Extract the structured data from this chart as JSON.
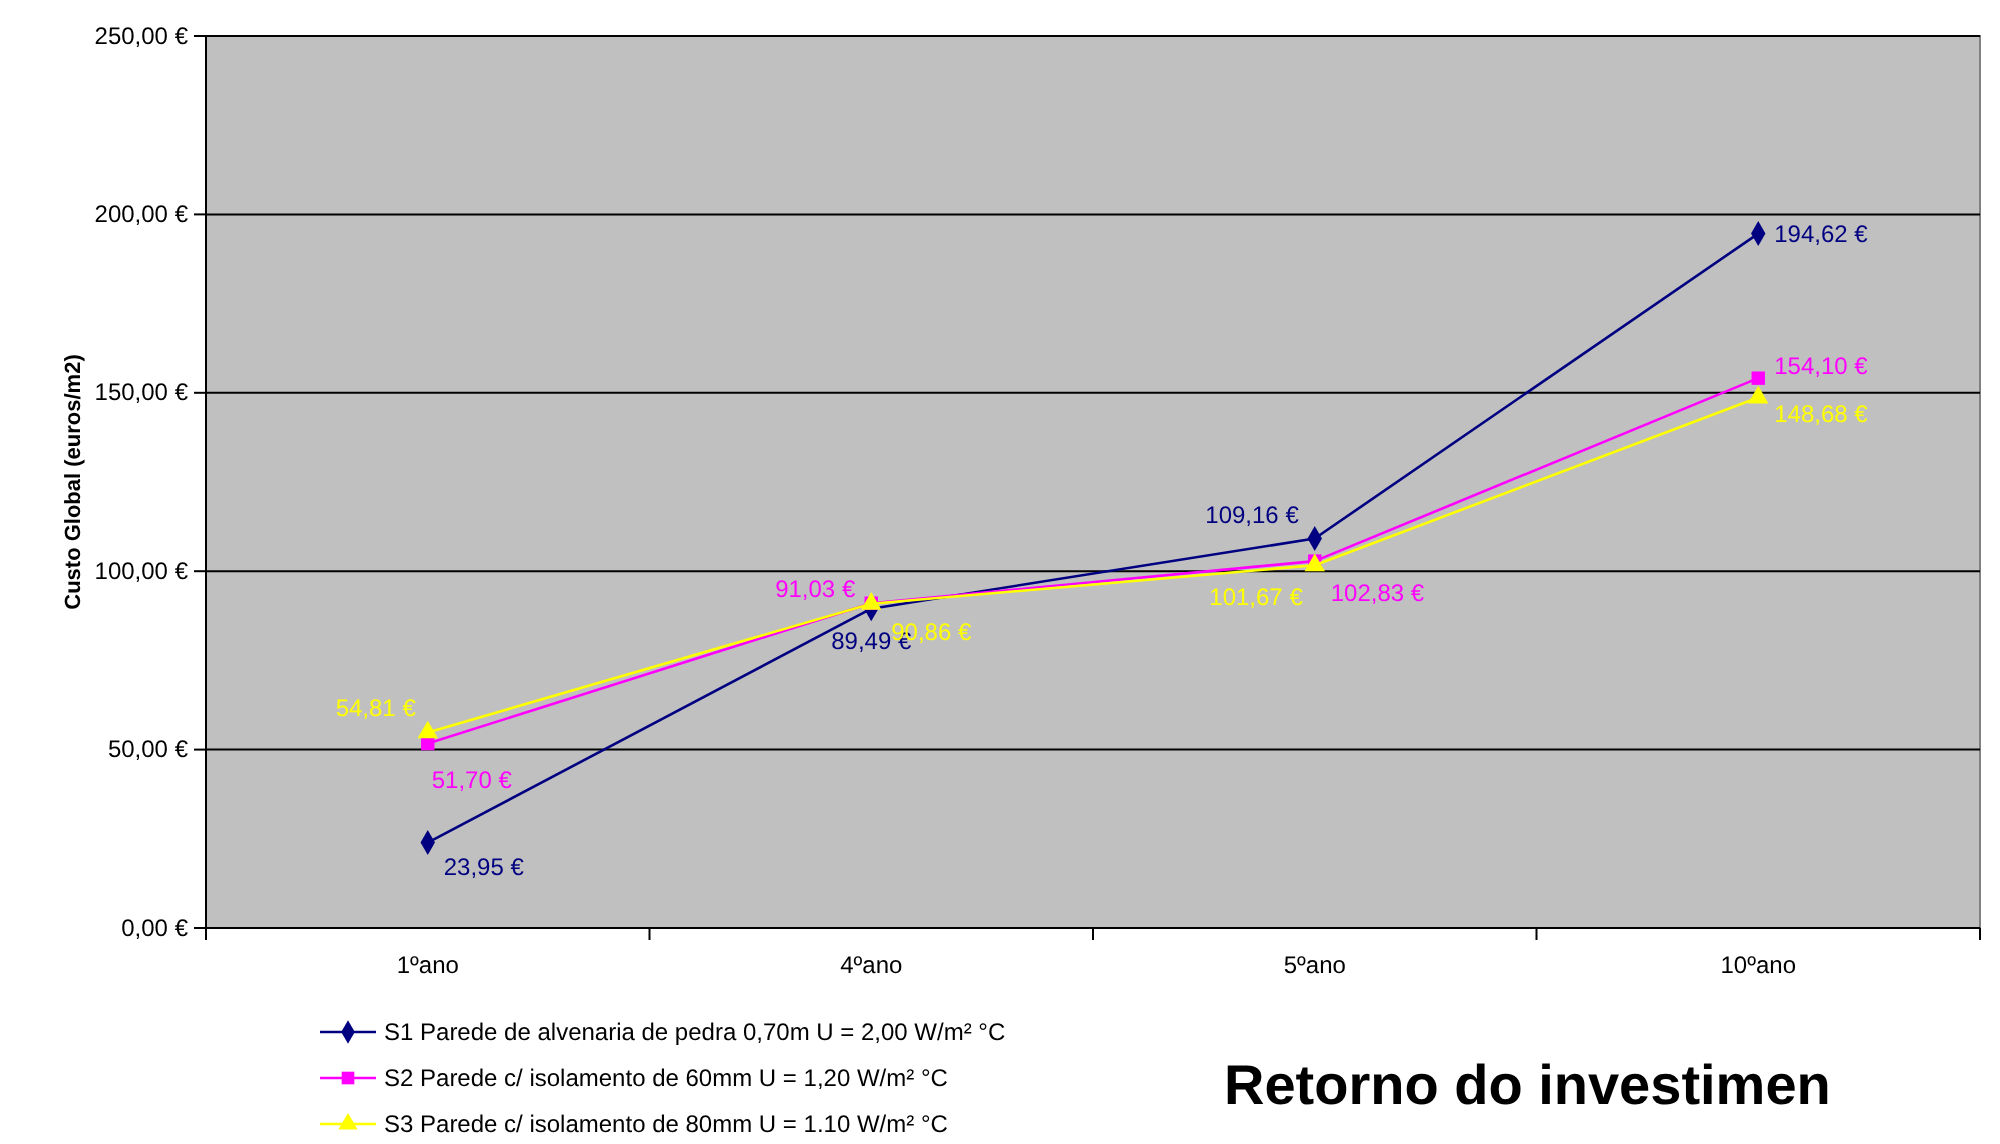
{
  "chart_data": {
    "type": "line",
    "title": "Retorno do investimen",
    "ylabel": "Custo Global (euros/m2)",
    "categories": [
      "1ºano",
      "4ºano",
      "5ºano",
      "10ºano"
    ],
    "ylim": [
      0,
      250
    ],
    "yticks": [
      {
        "value": 0,
        "label": "0,00 €"
      },
      {
        "value": 50,
        "label": "50,00 €"
      },
      {
        "value": 100,
        "label": "100,00 €"
      },
      {
        "value": 150,
        "label": "150,00 €"
      },
      {
        "value": 200,
        "label": "200,00 €"
      },
      {
        "value": 250,
        "label": "250,00 €"
      }
    ],
    "grid": "y",
    "legend": "bottom left",
    "series": [
      {
        "name": "S1 Parede de alvenaria de pedra 0,70m U = 2,00 W/m² °C",
        "color": "#000080",
        "marker": "diamond",
        "values": [
          23.95,
          89.49,
          109.16,
          194.62
        ],
        "value_labels": [
          "23,95 €",
          "89,49 €",
          "109,16 €",
          "194,62 €"
        ]
      },
      {
        "name": "S2 Parede c/ isolamento de 60mm U = 1,20 W/m² °C",
        "color": "#ff00ff",
        "marker": "square",
        "values": [
          51.7,
          91.03,
          102.83,
          154.1
        ],
        "value_labels": [
          "51,70 €",
          "91,03 €",
          "102,83 €",
          "154,10 €"
        ]
      },
      {
        "name": "S3 Parede c/ isolamento de 80mm U = 1.10 W/m² °C",
        "color": "#ffff00",
        "marker": "triangle",
        "values": [
          54.81,
          90.86,
          101.67,
          148.68
        ],
        "value_labels": [
          "54,81 €",
          "90,86 €",
          "101,67 €",
          "148,68 €"
        ]
      }
    ]
  }
}
